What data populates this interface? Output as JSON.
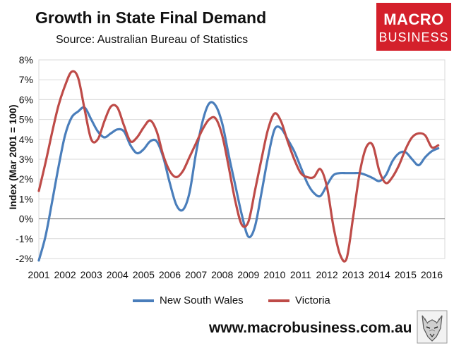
{
  "title": "Growth in State Final Demand",
  "subtitle": "Source: Australian Bureau of Statistics",
  "logo": {
    "line1": "MACRO",
    "line2": "BUSINESS"
  },
  "website": "www.macrobusiness.com.au",
  "colors": {
    "nsw": "#4a7ebb",
    "vic": "#be4b48",
    "grid": "#d9d9d9",
    "axis": "#808080"
  },
  "chart_data": {
    "type": "line",
    "title": "Growth in State Final Demand",
    "xlabel": "",
    "ylabel": "Index (Mar 2001 = 100)",
    "ylim": [
      -2,
      8
    ],
    "xlim": [
      2001.0,
      2016.5
    ],
    "y_ticks": [
      "-2%",
      "-1%",
      "0%",
      "1%",
      "2%",
      "3%",
      "4%",
      "5%",
      "6%",
      "7%",
      "8%"
    ],
    "x_ticks": [
      "2001",
      "2002",
      "2003",
      "2004",
      "2005",
      "2006",
      "2007",
      "2008",
      "2009",
      "2010",
      "2011",
      "2012",
      "2013",
      "2014",
      "2015",
      "2016"
    ],
    "grid": true,
    "legend_position": "bottom",
    "series": [
      {
        "name": "New South Wales",
        "x": [
          2001.0,
          2001.25,
          2001.5,
          2001.75,
          2002.0,
          2002.25,
          2002.5,
          2002.75,
          2003.0,
          2003.25,
          2003.5,
          2003.75,
          2004.0,
          2004.25,
          2004.5,
          2004.75,
          2005.0,
          2005.25,
          2005.5,
          2005.75,
          2006.0,
          2006.25,
          2006.5,
          2006.75,
          2007.0,
          2007.25,
          2007.5,
          2007.75,
          2008.0,
          2008.25,
          2008.5,
          2008.75,
          2009.0,
          2009.25,
          2009.5,
          2009.75,
          2010.0,
          2010.25,
          2010.5,
          2010.75,
          2011.0,
          2011.25,
          2011.5,
          2011.75,
          2012.0,
          2012.25,
          2012.5,
          2012.75,
          2013.0,
          2013.25,
          2013.5,
          2013.75,
          2014.0,
          2014.25,
          2014.5,
          2014.75,
          2015.0,
          2015.25,
          2015.5,
          2015.75,
          2016.0,
          2016.25
        ],
        "values": [
          -2.1,
          -0.9,
          0.8,
          2.6,
          4.2,
          5.1,
          5.4,
          5.6,
          5.0,
          4.4,
          4.1,
          4.3,
          4.5,
          4.4,
          3.7,
          3.3,
          3.5,
          3.9,
          3.9,
          3.1,
          1.8,
          0.7,
          0.45,
          1.3,
          3.3,
          4.9,
          5.8,
          5.7,
          4.8,
          3.2,
          1.7,
          0.2,
          -0.9,
          -0.4,
          1.3,
          3.1,
          4.5,
          4.55,
          4.0,
          3.4,
          2.6,
          1.8,
          1.3,
          1.15,
          1.7,
          2.2,
          2.3,
          2.3,
          2.3,
          2.3,
          2.2,
          2.05,
          1.9,
          2.2,
          2.9,
          3.3,
          3.35,
          3.0,
          2.7,
          3.1,
          3.4,
          3.55
        ]
      },
      {
        "name": "Victoria",
        "x": [
          2001.0,
          2001.25,
          2001.5,
          2001.75,
          2002.0,
          2002.25,
          2002.5,
          2002.75,
          2003.0,
          2003.25,
          2003.5,
          2003.75,
          2004.0,
          2004.25,
          2004.5,
          2004.75,
          2005.0,
          2005.25,
          2005.5,
          2005.75,
          2006.0,
          2006.25,
          2006.5,
          2006.75,
          2007.0,
          2007.25,
          2007.5,
          2007.75,
          2008.0,
          2008.25,
          2008.5,
          2008.75,
          2009.0,
          2009.25,
          2009.5,
          2009.75,
          2010.0,
          2010.25,
          2010.5,
          2010.75,
          2011.0,
          2011.25,
          2011.5,
          2011.75,
          2012.0,
          2012.25,
          2012.5,
          2012.75,
          2013.0,
          2013.25,
          2013.5,
          2013.75,
          2014.0,
          2014.25,
          2014.5,
          2014.75,
          2015.0,
          2015.25,
          2015.5,
          2015.75,
          2016.0,
          2016.25
        ],
        "values": [
          1.4,
          2.8,
          4.3,
          5.7,
          6.7,
          7.4,
          7.1,
          5.5,
          4.0,
          4.0,
          4.9,
          5.65,
          5.6,
          4.7,
          3.9,
          4.1,
          4.6,
          4.95,
          4.4,
          3.2,
          2.4,
          2.1,
          2.4,
          3.1,
          3.8,
          4.5,
          5.0,
          5.05,
          4.2,
          2.6,
          0.9,
          -0.3,
          -0.15,
          1.4,
          3.0,
          4.5,
          5.3,
          4.9,
          3.9,
          3.0,
          2.3,
          2.1,
          2.1,
          2.5,
          1.6,
          -0.4,
          -1.8,
          -2.0,
          0.1,
          2.3,
          3.6,
          3.7,
          2.4,
          1.8,
          2.1,
          2.7,
          3.5,
          4.1,
          4.3,
          4.2,
          3.6,
          3.7
        ]
      }
    ]
  }
}
